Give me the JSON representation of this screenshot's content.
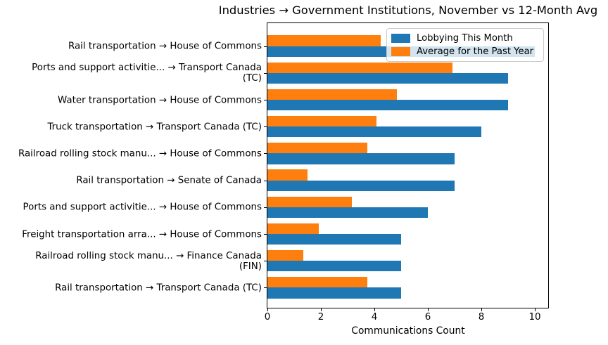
{
  "chart_data": {
    "type": "bar",
    "orientation": "horizontal",
    "title": "Industries → Government Institutions, November vs 12-Month Avg",
    "xlabel": "Communications Count",
    "xlim": [
      0,
      10.5
    ],
    "xticks": [
      0,
      2,
      4,
      6,
      8,
      10
    ],
    "grid": false,
    "legend_position": "upper right",
    "categories": [
      "Rail transportation → House of Commons",
      "Ports and support activitie... → Transport Canada\n(TC)",
      "Water transportation → House of Commons",
      "Truck transportation → Transport Canada (TC)",
      "Railroad rolling stock manu... → House of Commons",
      "Rail transportation → Senate of Canada",
      "Ports and support activitie... → House of Commons",
      "Freight transportation arra... → House of Commons",
      "Railroad rolling stock manu... → Finance Canada\n(FIN)",
      "Rail transportation → Transport Canada (TC)"
    ],
    "series": [
      {
        "name": "Lobbying This Month",
        "color": "#1f77b4",
        "values": [
          10,
          9,
          9,
          8,
          7,
          7,
          6,
          5,
          5,
          5
        ]
      },
      {
        "name": "Average for the Past Year",
        "color": "#ff7f0e",
        "values": [
          4.25,
          6.92,
          4.83,
          4.08,
          3.75,
          1.5,
          3.17,
          1.92,
          1.33,
          3.75
        ]
      }
    ],
    "axis_color": "#000000",
    "background_color": "#ffffff"
  }
}
